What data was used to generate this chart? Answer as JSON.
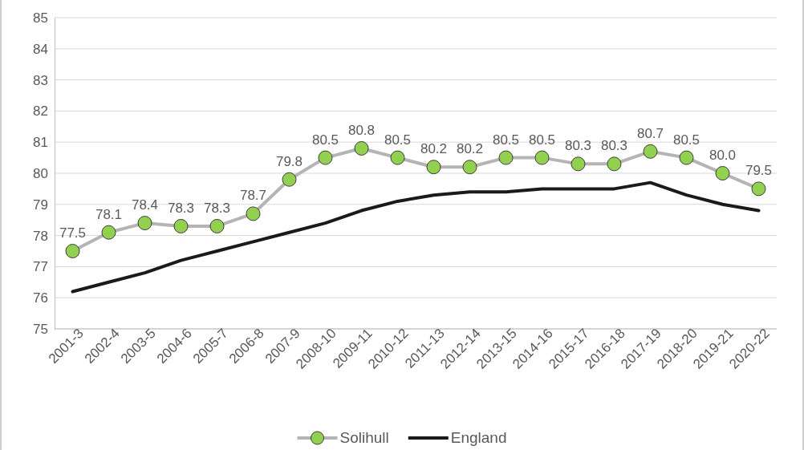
{
  "chart_data": {
    "type": "line",
    "categories": [
      "2001-3",
      "2002-4",
      "2003-5",
      "2004-6",
      "2005-7",
      "2006-8",
      "2007-9",
      "2008-10",
      "2009-11",
      "2010-12",
      "2011-13",
      "2012-14",
      "2013-15",
      "2014-16",
      "2015-17",
      "2016-18",
      "2017-19",
      "2018-20",
      "2019-21",
      "2020-22"
    ],
    "series": [
      {
        "name": "Solihull",
        "color": "#b4b4b4",
        "marker": "circle",
        "values": [
          77.5,
          78.1,
          78.4,
          78.3,
          78.3,
          78.7,
          79.8,
          80.5,
          80.8,
          80.5,
          80.2,
          80.2,
          80.5,
          80.5,
          80.3,
          80.3,
          80.7,
          80.5,
          80.0,
          79.5
        ],
        "value_labels": [
          "77.5",
          "78.1",
          "78.4",
          "78.3",
          "78.3",
          "78.7",
          "79.8",
          "80.5",
          "80.8",
          "80.5",
          "80.2",
          "80.2",
          "80.5",
          "80.5",
          "80.3",
          "80.3",
          "80.7",
          "80.5",
          "80.0",
          "79.5"
        ]
      },
      {
        "name": "England",
        "color": "#1a1a1a",
        "marker": "none",
        "values": [
          76.2,
          76.5,
          76.8,
          77.2,
          77.5,
          77.8,
          78.1,
          78.4,
          78.8,
          79.1,
          79.3,
          79.4,
          79.4,
          79.5,
          79.5,
          79.5,
          79.7,
          79.3,
          79.0,
          78.8
        ]
      }
    ],
    "ylim": [
      75,
      85
    ],
    "yticks": [
      75,
      76,
      77,
      78,
      79,
      80,
      81,
      82,
      83,
      84,
      85
    ],
    "grid": "y",
    "legend": "bottom"
  }
}
